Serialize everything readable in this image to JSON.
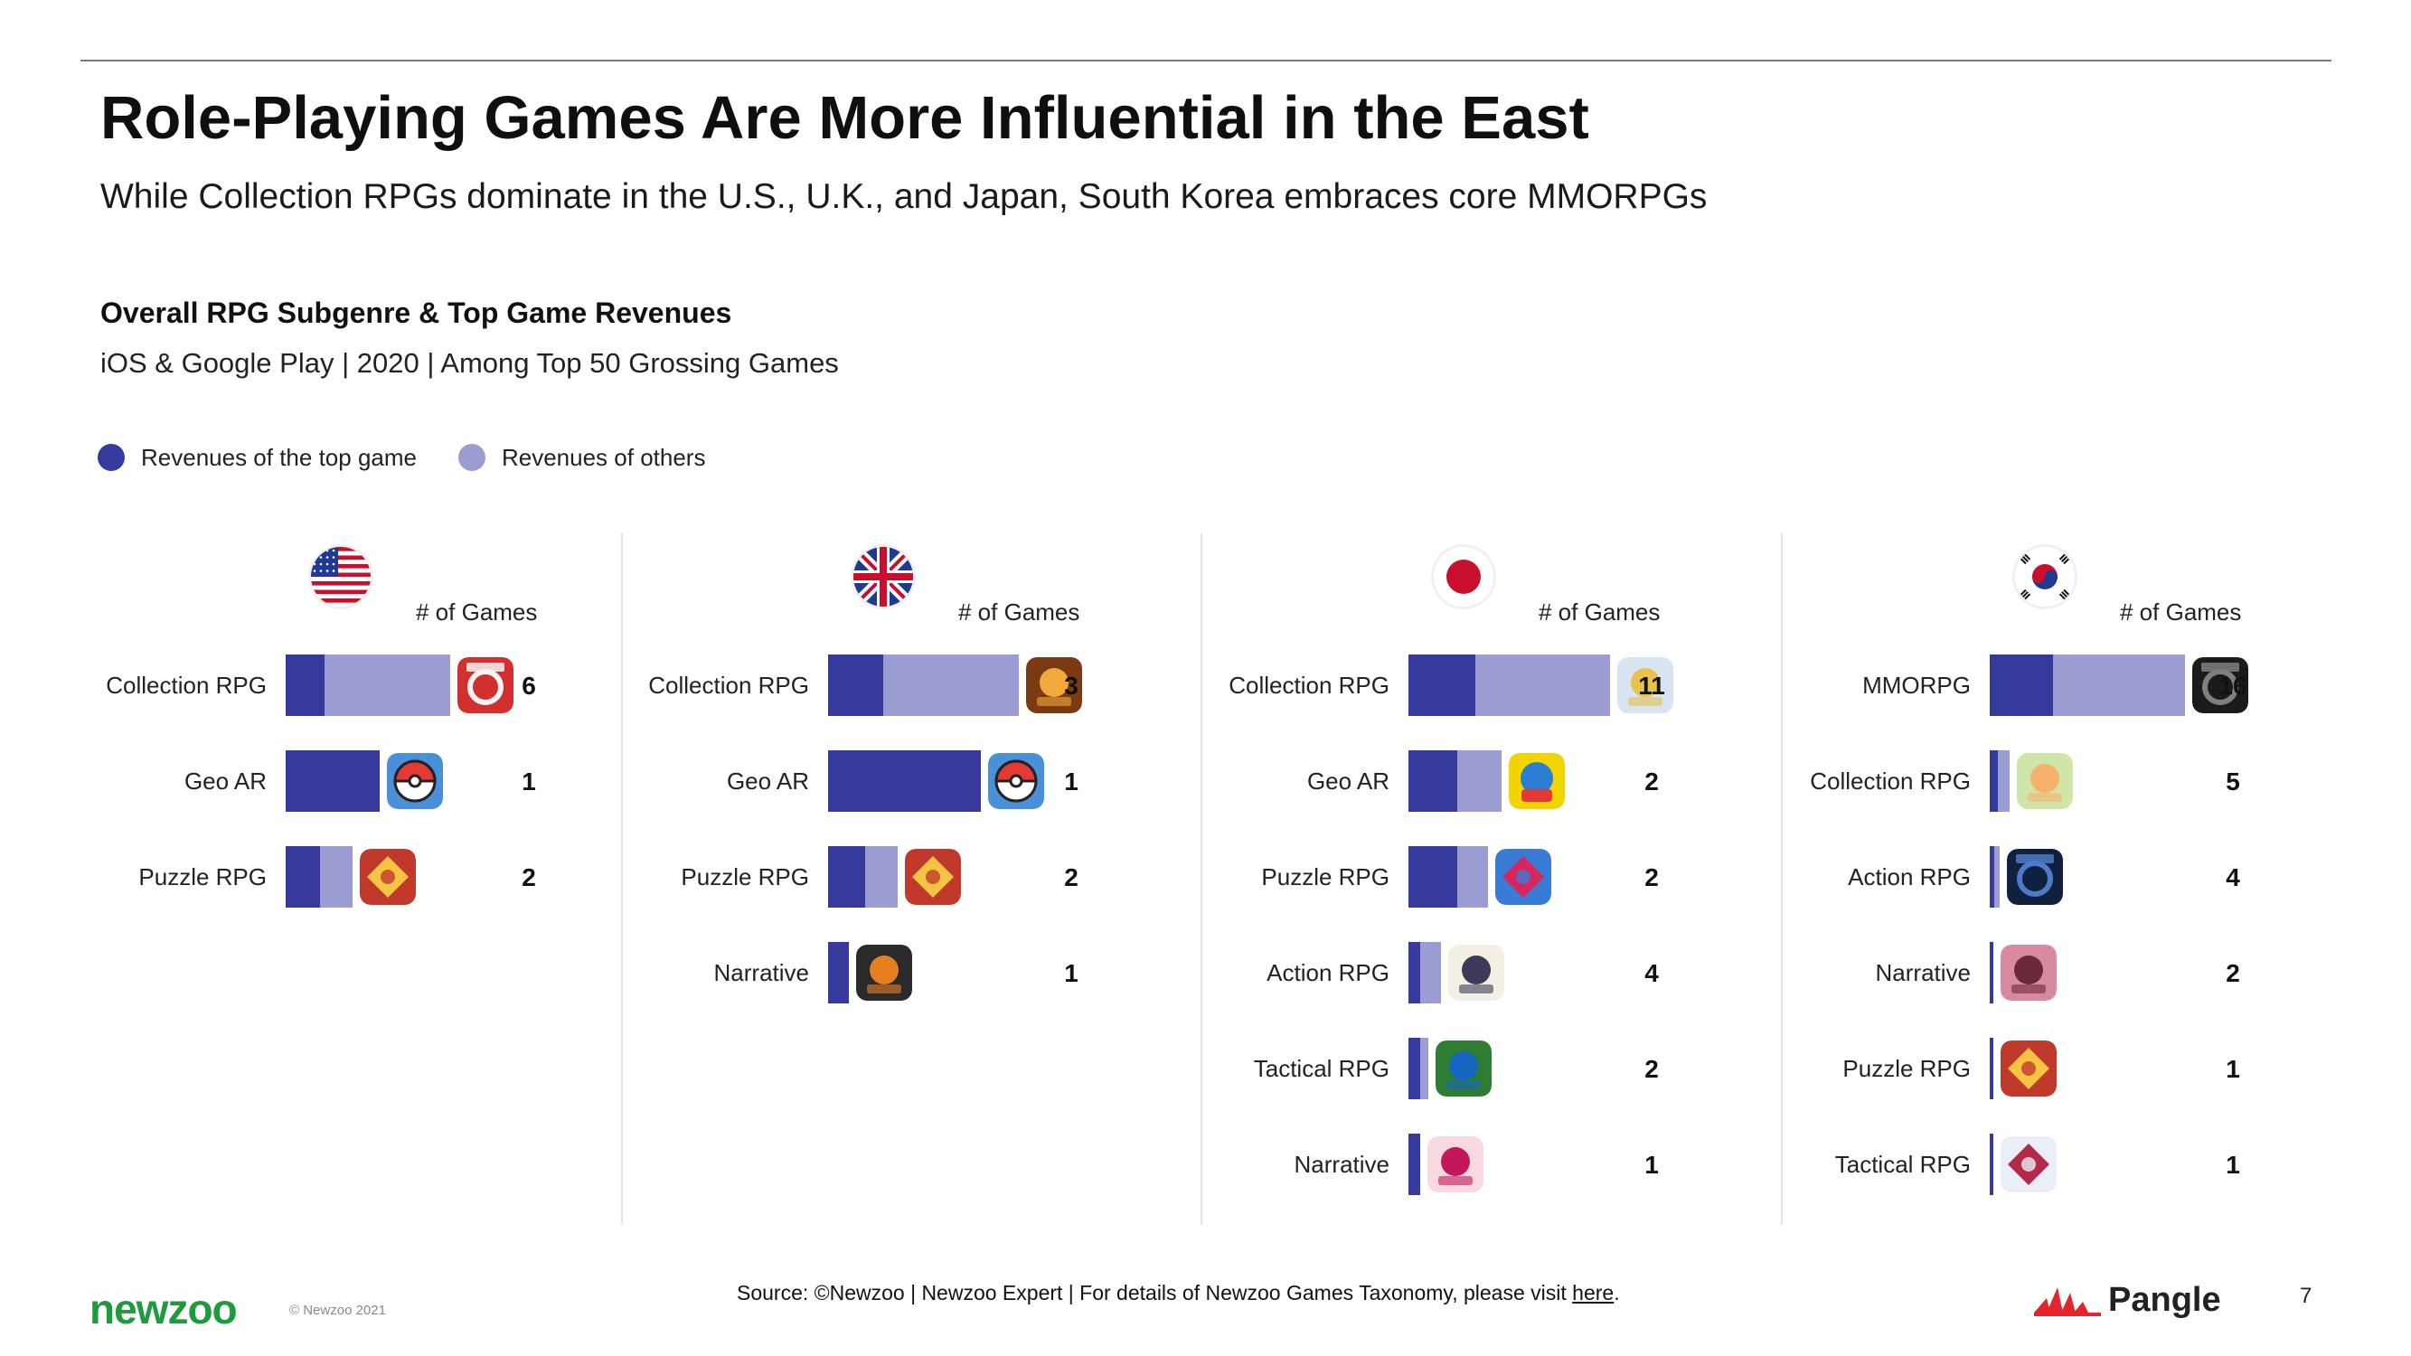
{
  "header": {
    "title": "Role-Playing Games Are More Influential in the East",
    "subtitle": "While Collection RPGs dominate in the U.S., U.K., and Japan, South Korea embraces core MMORPGs"
  },
  "chart_header": {
    "title": "Overall RPG Subgenre & Top Game Revenues",
    "subtitle": "iOS & Google Play | 2020 | Among Top 50 Grossing Games"
  },
  "legend": {
    "top_game": "Revenues of the top game",
    "others": "Revenues of others"
  },
  "colors": {
    "top_game": "#363a9c",
    "others": "#9b9dd2"
  },
  "chart_data": {
    "type": "bar",
    "games_header": "# of Games",
    "panels": [
      {
        "country": "United States",
        "flag": "us-flag-icon",
        "rows": [
          {
            "label": "Collection RPG",
            "top": 0.24,
            "others": 0.77,
            "games": "6",
            "icon": "marvel-strike-force-icon"
          },
          {
            "label": "Geo AR",
            "top": 0.58,
            "others": 0,
            "games": "1",
            "icon": "pokemon-go-icon"
          },
          {
            "label": "Puzzle RPG",
            "top": 0.21,
            "others": 0.2,
            "games": "2",
            "icon": "empires-puzzles-icon"
          }
        ]
      },
      {
        "country": "United Kingdom",
        "flag": "uk-flag-icon",
        "rows": [
          {
            "label": "Collection RPG",
            "top": 0.34,
            "others": 0.83,
            "games": "3",
            "icon": "raid-shadow-legends-icon"
          },
          {
            "label": "Geo AR",
            "top": 0.94,
            "others": 0,
            "games": "1",
            "icon": "pokemon-go-icon"
          },
          {
            "label": "Puzzle RPG",
            "top": 0.23,
            "others": 0.2,
            "games": "2",
            "icon": "empires-puzzles-icon"
          },
          {
            "label": "Narrative",
            "top": 0.13,
            "others": 0,
            "games": "1",
            "icon": "harry-potter-hogwarts-mystery-icon"
          }
        ]
      },
      {
        "country": "Japan",
        "flag": "japan-flag-icon",
        "rows": [
          {
            "label": "Collection RPG",
            "top": 0.41,
            "others": 0.83,
            "games": "11",
            "icon": "fate-grand-order-icon"
          },
          {
            "label": "Geo AR",
            "top": 0.3,
            "others": 0.27,
            "games": "2",
            "icon": "dragon-quest-walk-icon"
          },
          {
            "label": "Puzzle RPG",
            "top": 0.3,
            "others": 0.19,
            "games": "2",
            "icon": "puzzle-dragons-icon"
          },
          {
            "label": "Action RPG",
            "top": 0.07,
            "others": 0.13,
            "games": "4",
            "icon": "genshin-impact-icon"
          },
          {
            "label": "Tactical RPG",
            "top": 0.07,
            "others": 0.05,
            "games": "2",
            "icon": "fire-emblem-heroes-icon"
          },
          {
            "label": "Narrative",
            "top": 0.07,
            "others": 0,
            "games": "1",
            "icon": "narrative-jp-game-icon"
          }
        ]
      },
      {
        "country": "South Korea",
        "flag": "korea-flag-icon",
        "rows": [
          {
            "label": "MMORPG",
            "top": 0.39,
            "others": 0.81,
            "games": "16",
            "icon": "lineage-2m-icon"
          },
          {
            "label": "Collection RPG",
            "top": 0.05,
            "others": 0.07,
            "games": "5",
            "icon": "collection-rpg-kr-icon"
          },
          {
            "label": "Action RPG",
            "top": 0.03,
            "others": 0.03,
            "games": "4",
            "icon": "miracle-kr-game-icon"
          },
          {
            "label": "Narrative",
            "top": 0.02,
            "others": 0,
            "games": "2",
            "icon": "narrative-kr-game-icon"
          },
          {
            "label": "Puzzle RPG",
            "top": 0.02,
            "others": 0,
            "games": "1",
            "icon": "empires-puzzles-icon"
          },
          {
            "label": "Tactical RPG",
            "top": 0.02,
            "others": 0,
            "games": "1",
            "icon": "tactical-kr-game-icon"
          }
        ]
      }
    ]
  },
  "footer": {
    "brand": "newzoo",
    "copyright": "© Newzoo 2021",
    "source_prefix": "Source: ©Newzoo | Newzoo Expert | For details of Newzoo Games Taxonomy, please visit ",
    "source_link": "here",
    "source_suffix": ".",
    "partner": "Pangle",
    "page_number": "7"
  }
}
